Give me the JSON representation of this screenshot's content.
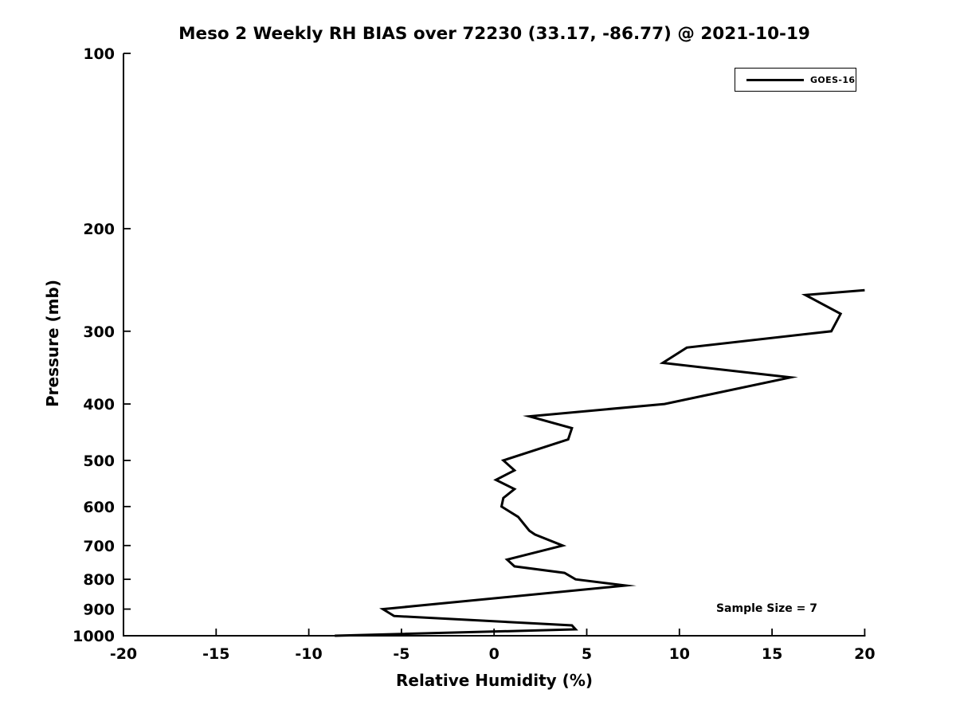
{
  "chart_data": {
    "type": "line",
    "title": "Meso 2 Weekly RH BIAS over 72230 (33.17, -86.77) @ 2021-10-19",
    "xlabel": "Relative Humidity (%)",
    "ylabel": "Pressure (mb)",
    "xlim": [
      -20,
      20
    ],
    "ylim": [
      100,
      1000
    ],
    "x_scale": "linear",
    "y_scale": "log",
    "y_inverted": true,
    "grid": false,
    "x_ticks": [
      -20,
      -15,
      -10,
      -5,
      0,
      5,
      10,
      15,
      20
    ],
    "y_ticks": [
      100,
      200,
      300,
      400,
      500,
      600,
      700,
      800,
      900,
      1000
    ],
    "legend_position": "top-right",
    "annotation": "Sample Size = 7",
    "background_color": "#ffffff",
    "axis_color": "#000000",
    "point_format": [
      "pressure_mb",
      "rh_bias_pct"
    ],
    "series": [
      {
        "name": "GOES-16",
        "color": "#000000",
        "line_width": 3,
        "points": [
          [
            255,
            20.0
          ],
          [
            260,
            16.8
          ],
          [
            280,
            18.7
          ],
          [
            300,
            18.2
          ],
          [
            320,
            10.4
          ],
          [
            340,
            9.1
          ],
          [
            360,
            16.0
          ],
          [
            400,
            9.2
          ],
          [
            420,
            1.9
          ],
          [
            440,
            4.2
          ],
          [
            460,
            4.0
          ],
          [
            500,
            0.5
          ],
          [
            520,
            1.1
          ],
          [
            540,
            0.1
          ],
          [
            560,
            1.1
          ],
          [
            580,
            0.5
          ],
          [
            600,
            0.4
          ],
          [
            625,
            1.3
          ],
          [
            660,
            1.9
          ],
          [
            670,
            2.2
          ],
          [
            700,
            3.7
          ],
          [
            740,
            0.7
          ],
          [
            760,
            1.1
          ],
          [
            780,
            3.8
          ],
          [
            800,
            4.4
          ],
          [
            820,
            7.1
          ],
          [
            900,
            -6.0
          ],
          [
            925,
            -5.4
          ],
          [
            960,
            4.2
          ],
          [
            975,
            4.4
          ],
          [
            1000,
            -8.6
          ]
        ]
      }
    ]
  }
}
